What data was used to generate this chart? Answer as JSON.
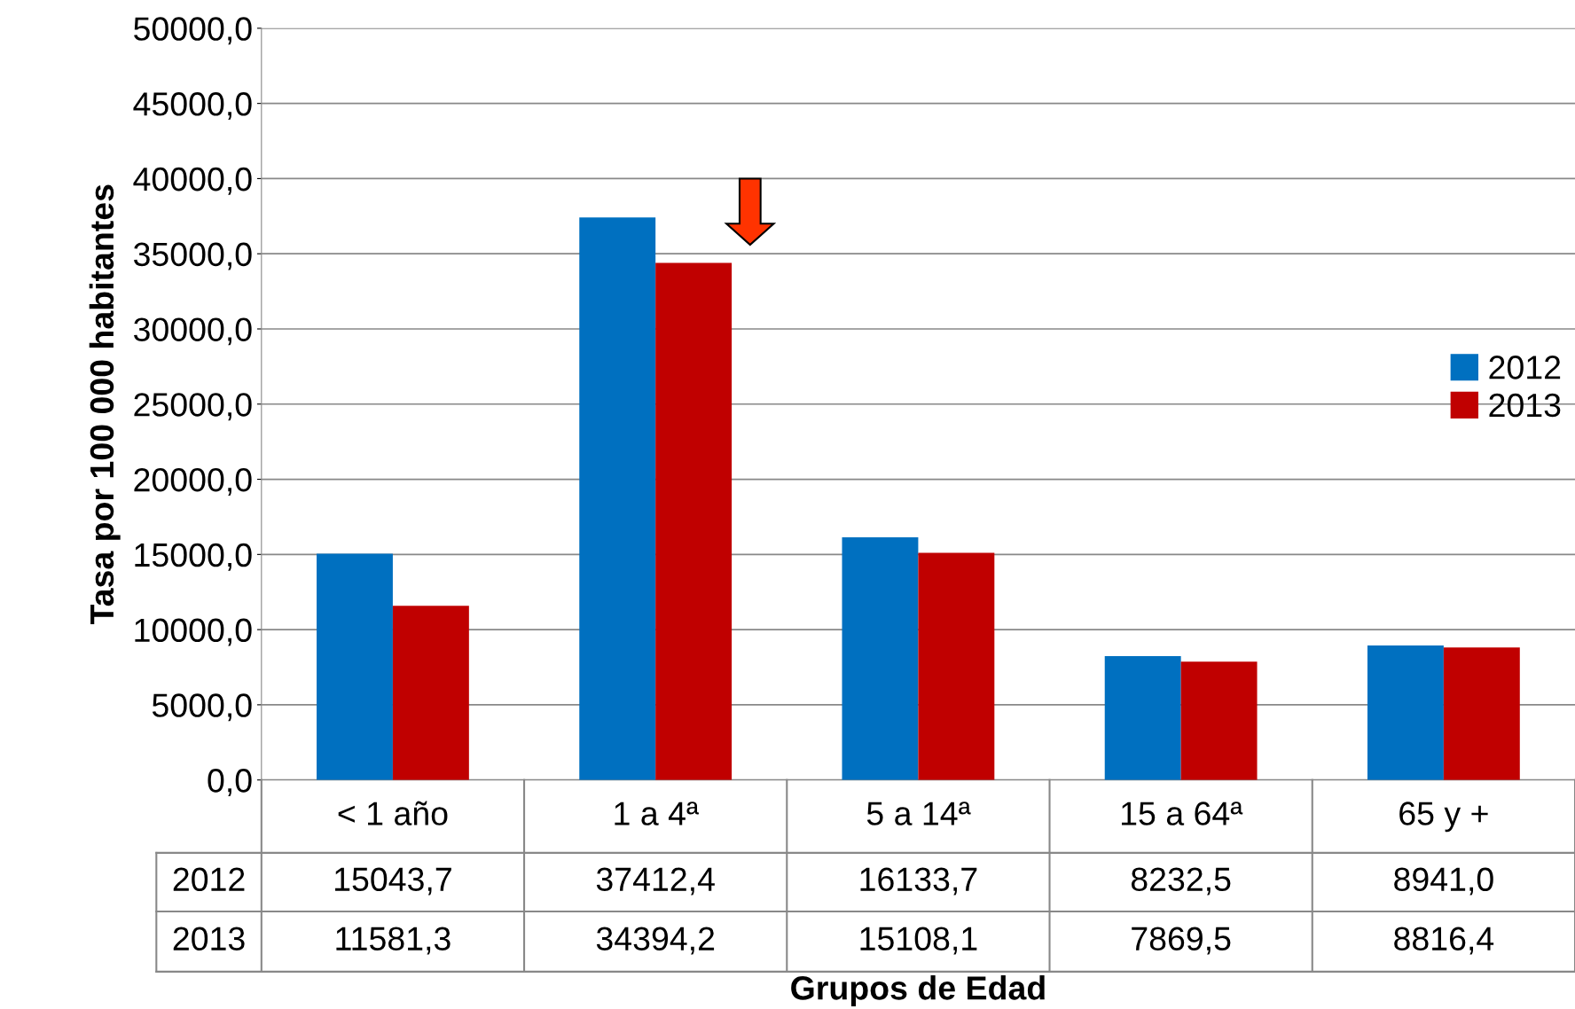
{
  "chart_data": {
    "type": "bar",
    "categories": [
      "< 1 año",
      "1 a 4ª",
      "5 a 14ª",
      "15 a 64ª",
      "65 y +"
    ],
    "series": [
      {
        "name": "2012",
        "color": "#0070c0",
        "values": [
          15043.7,
          37412.4,
          16133.7,
          8232.5,
          8941.0
        ],
        "value_labels": [
          "15043,7",
          "37412,4",
          "16133,7",
          "8232,5",
          "8941,0"
        ]
      },
      {
        "name": "2013",
        "color": "#c00000",
        "values": [
          11581.3,
          34394.2,
          15108.1,
          7869.5,
          8816.4
        ],
        "value_labels": [
          "11581,3",
          "34394,2",
          "15108,1",
          "7869,5",
          "8816,4"
        ]
      }
    ],
    "xlabel": "Grupos de Edad",
    "ylabel": "Tasa por 100 000 habitantes",
    "ylim": [
      0,
      50000
    ],
    "yticks": [
      {
        "value": 0,
        "label": "0,0"
      },
      {
        "value": 5000,
        "label": "5000,0"
      },
      {
        "value": 10000,
        "label": "10000,0"
      },
      {
        "value": 15000,
        "label": "15000,0"
      },
      {
        "value": 20000,
        "label": "20000,0"
      },
      {
        "value": 25000,
        "label": "25000,0"
      },
      {
        "value": 30000,
        "label": "30000,0"
      },
      {
        "value": 35000,
        "label": "35000,0"
      },
      {
        "value": 40000,
        "label": "40000,0"
      },
      {
        "value": 45000,
        "label": "45000,0"
      },
      {
        "value": 50000,
        "label": "50000,0"
      }
    ],
    "grid": "y",
    "legend": "right"
  }
}
